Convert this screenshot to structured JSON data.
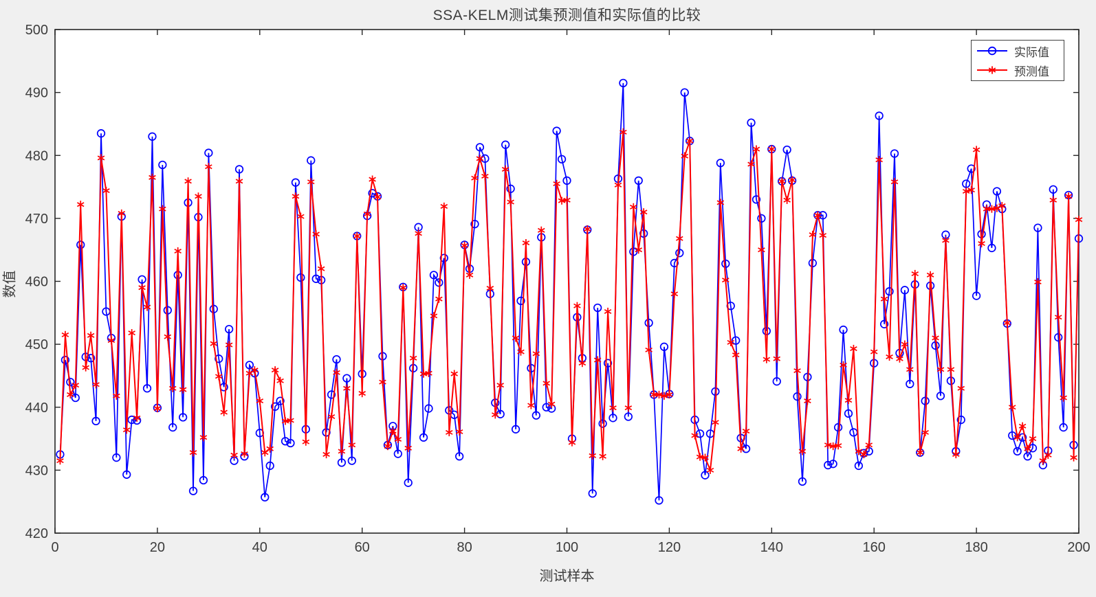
{
  "colors": {
    "figure_background": "#f0f0f0",
    "plot_background": "#ffffff",
    "axis": "#262626",
    "text": "#3d3d3d",
    "actual_blue": "#0000ff",
    "predicted_red": "#ff0000"
  },
  "chart_data": {
    "type": "line",
    "title": "SSA-KELM测试集预测值和实际值的比较",
    "xlabel": "测试样本",
    "ylabel": "数值",
    "xlim": [
      0,
      200
    ],
    "ylim": [
      420,
      500
    ],
    "xticks": [
      0,
      20,
      40,
      60,
      80,
      100,
      120,
      140,
      160,
      180,
      200
    ],
    "yticks": [
      420,
      430,
      440,
      450,
      460,
      470,
      480,
      490,
      500
    ],
    "grid": false,
    "legend_position": "top-right",
    "x_start": 1,
    "series": [
      {
        "name": "实际值",
        "color": "#0000ff",
        "marker": "circle",
        "line_width": 1.7,
        "values": [
          432.5,
          447.5,
          444.0,
          441.5,
          465.8,
          448.0,
          447.8,
          437.8,
          483.5,
          455.2,
          451.0,
          432.0,
          470.3,
          429.3,
          438.0,
          437.9,
          460.3,
          443.0,
          483.0,
          439.9,
          478.5,
          455.4,
          436.8,
          461.0,
          438.4,
          472.5,
          426.7,
          470.2,
          428.4,
          480.4,
          455.6,
          447.7,
          443.2,
          452.4,
          431.5,
          477.8,
          432.2,
          446.7,
          445.4,
          435.9,
          425.7,
          430.7,
          440.1,
          441.0,
          434.6,
          434.3,
          475.7,
          460.6,
          436.5,
          479.2,
          460.4,
          460.2,
          436.0,
          442.0,
          447.6,
          431.2,
          444.6,
          431.5,
          467.2,
          445.3,
          470.4,
          474.0,
          473.5,
          448.1,
          434.0,
          437.0,
          432.6,
          459.1,
          428.0,
          446.2,
          468.6,
          435.2,
          439.8,
          461.0,
          459.8,
          463.7,
          439.5,
          438.8,
          432.2,
          465.8,
          462.0,
          469.1,
          481.3,
          479.5,
          458.0,
          440.7,
          438.9,
          481.7,
          474.7,
          436.5,
          456.9,
          463.1,
          446.2,
          438.7,
          467.0,
          440.0,
          439.8,
          483.9,
          479.4,
          476.0,
          435.0,
          454.3,
          447.8,
          468.2,
          426.3,
          455.8,
          437.4,
          447.0,
          438.3,
          476.3,
          491.5,
          438.5,
          464.7,
          476.0,
          467.6,
          453.4,
          442.0,
          425.2,
          449.6,
          442.1,
          462.9,
          464.5,
          490.0,
          482.3,
          438.0,
          435.8,
          429.2,
          435.8,
          442.5,
          478.8,
          462.8,
          456.1,
          450.6,
          435.1,
          433.4,
          485.2,
          473.0,
          470.0,
          452.1,
          481.0,
          444.1,
          475.9,
          480.9,
          476.0,
          441.7,
          428.2,
          444.8,
          462.9,
          470.5,
          470.5,
          430.8,
          431.0,
          436.8,
          452.3,
          439.0,
          436.0,
          430.7,
          432.7,
          433.0,
          447.0,
          486.3,
          453.2,
          458.4,
          480.3,
          448.6,
          458.6,
          443.7,
          459.5,
          432.8,
          441.0,
          459.3,
          449.8,
          441.8,
          467.4,
          444.2,
          433.0,
          438.0,
          475.5,
          477.9,
          457.7,
          467.5,
          472.2,
          465.3,
          474.3,
          471.5,
          453.3,
          435.5,
          433.0,
          435.2,
          432.2,
          433.5,
          468.5,
          430.8,
          433.1,
          474.6,
          451.1,
          436.8,
          473.7,
          434.0,
          466.8
        ]
      },
      {
        "name": "预测值",
        "color": "#ff0000",
        "marker": "asterisk",
        "line_width": 2.0,
        "values": [
          431.5,
          451.5,
          442.0,
          443.5,
          472.2,
          446.3,
          451.4,
          443.6,
          479.6,
          474.4,
          450.6,
          441.8,
          470.8,
          436.4,
          451.8,
          438.3,
          459.0,
          455.9,
          476.5,
          439.8,
          471.5,
          451.2,
          443.0,
          464.8,
          442.8,
          475.9,
          432.8,
          473.5,
          435.2,
          478.2,
          450.1,
          444.9,
          439.2,
          449.9,
          432.4,
          475.9,
          432.6,
          445.4,
          445.9,
          441.0,
          432.8,
          433.4,
          445.9,
          444.2,
          437.8,
          437.9,
          473.5,
          470.3,
          434.5,
          475.8,
          467.5,
          462.0,
          432.5,
          438.5,
          445.5,
          433.0,
          443.0,
          434.0,
          467.2,
          442.2,
          470.7,
          476.2,
          473.4,
          444.0,
          433.8,
          436.2,
          434.9,
          459.0,
          433.5,
          447.8,
          467.6,
          445.3,
          445.4,
          454.5,
          457.2,
          471.9,
          436.0,
          445.3,
          436.1,
          465.7,
          461.0,
          476.4,
          479.5,
          476.7,
          458.9,
          438.8,
          443.5,
          477.8,
          472.6,
          451.0,
          448.8,
          466.1,
          440.3,
          448.5,
          468.1,
          443.8,
          440.5,
          475.5,
          472.8,
          472.9,
          434.4,
          456.1,
          447.0,
          468.3,
          432.3,
          447.5,
          432.2,
          455.2,
          439.9,
          475.3,
          483.7,
          439.9,
          471.8,
          465.0,
          471.0,
          449.1,
          442.0,
          442.0,
          441.8,
          442.0,
          458.0,
          466.8,
          479.9,
          482.3,
          435.5,
          432.1,
          432.0,
          430.0,
          437.6,
          472.5,
          460.2,
          450.3,
          448.3,
          433.4,
          436.2,
          478.6,
          481.0,
          465.0,
          447.6,
          481.0,
          447.7,
          475.9,
          472.9,
          476.1,
          445.8,
          433.0,
          441.0,
          467.4,
          470.5,
          467.3,
          434.0,
          433.8,
          433.9,
          446.7,
          441.1,
          449.3,
          433.0,
          432.5,
          434.0,
          448.8,
          479.3,
          457.2,
          448.0,
          475.8,
          447.7,
          450.0,
          446.0,
          461.2,
          432.8,
          436.0,
          461.0,
          451.0,
          446.0,
          466.5,
          446.0,
          432.5,
          443.0,
          474.3,
          474.5,
          480.9,
          466.0,
          471.5,
          471.5,
          471.6,
          472.0,
          453.4,
          440.0,
          435.2,
          437.0,
          433.4,
          435.0,
          459.9,
          431.5,
          432.4,
          472.9,
          454.3,
          441.5,
          473.5,
          432.0,
          469.8
        ]
      }
    ]
  }
}
